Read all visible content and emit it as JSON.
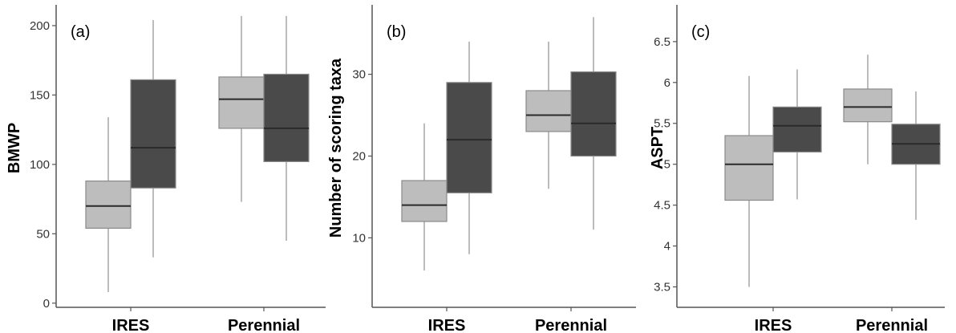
{
  "chart_data": [
    {
      "type": "boxplot",
      "panel_label": "(a)",
      "ylabel": "BMWP",
      "categories": [
        "IRES",
        "Perennial"
      ],
      "yticks": [
        0,
        50,
        100,
        150,
        200
      ],
      "ylim": [
        -3,
        215
      ],
      "colors": [
        "#bdbdbd",
        "#4a4a4a"
      ],
      "grid": false,
      "boxes": [
        {
          "category": "IRES",
          "group": 0,
          "min": 8,
          "q1": 54,
          "median": 70,
          "q3": 88,
          "max": 134
        },
        {
          "category": "IRES",
          "group": 1,
          "min": 33,
          "q1": 83,
          "median": 112,
          "q3": 161,
          "max": 204
        },
        {
          "category": "Perennial",
          "group": 0,
          "min": 73,
          "q1": 126,
          "median": 147,
          "q3": 163,
          "max": 207
        },
        {
          "category": "Perennial",
          "group": 1,
          "min": 45,
          "q1": 102,
          "median": 126,
          "q3": 165,
          "max": 207
        }
      ]
    },
    {
      "type": "boxplot",
      "panel_label": "(b)",
      "ylabel": "Number of scoring taxa",
      "categories": [
        "IRES",
        "Perennial"
      ],
      "yticks": [
        10,
        20,
        30
      ],
      "ylim": [
        1.5,
        38.5
      ],
      "colors": [
        "#bdbdbd",
        "#4a4a4a"
      ],
      "grid": false,
      "boxes": [
        {
          "category": "IRES",
          "group": 0,
          "min": 6,
          "q1": 12,
          "median": 14,
          "q3": 17,
          "max": 24
        },
        {
          "category": "IRES",
          "group": 1,
          "min": 8,
          "q1": 15.5,
          "median": 22,
          "q3": 29,
          "max": 34
        },
        {
          "category": "Perennial",
          "group": 0,
          "min": 16,
          "q1": 23,
          "median": 25,
          "q3": 28,
          "max": 34
        },
        {
          "category": "Perennial",
          "group": 1,
          "min": 11,
          "q1": 20,
          "median": 24,
          "q3": 30.3,
          "max": 37
        }
      ]
    },
    {
      "type": "boxplot",
      "panel_label": "(c)",
      "ylabel": "ASPT",
      "categories": [
        "IRES",
        "Perennial"
      ],
      "yticks": [
        3.5,
        4,
        4.5,
        5,
        5.5,
        6,
        6.5
      ],
      "ytick_labels": [
        "3.5",
        "4",
        "4.5",
        "5",
        "5.5",
        "6",
        "6.5"
      ],
      "ylim": [
        3.25,
        6.95
      ],
      "colors": [
        "#bdbdbd",
        "#4a4a4a"
      ],
      "grid": false,
      "boxes": [
        {
          "category": "IRES",
          "group": 0,
          "min": 3.5,
          "q1": 4.56,
          "median": 5.0,
          "q3": 5.35,
          "max": 6.08
        },
        {
          "category": "IRES",
          "group": 1,
          "min": 4.57,
          "q1": 5.15,
          "median": 5.47,
          "q3": 5.7,
          "max": 6.16
        },
        {
          "category": "Perennial",
          "group": 0,
          "min": 5.0,
          "q1": 5.52,
          "median": 5.7,
          "q3": 5.92,
          "max": 6.34
        },
        {
          "category": "Perennial",
          "group": 1,
          "min": 4.32,
          "q1": 5.0,
          "median": 5.25,
          "q3": 5.49,
          "max": 5.89
        }
      ]
    }
  ]
}
